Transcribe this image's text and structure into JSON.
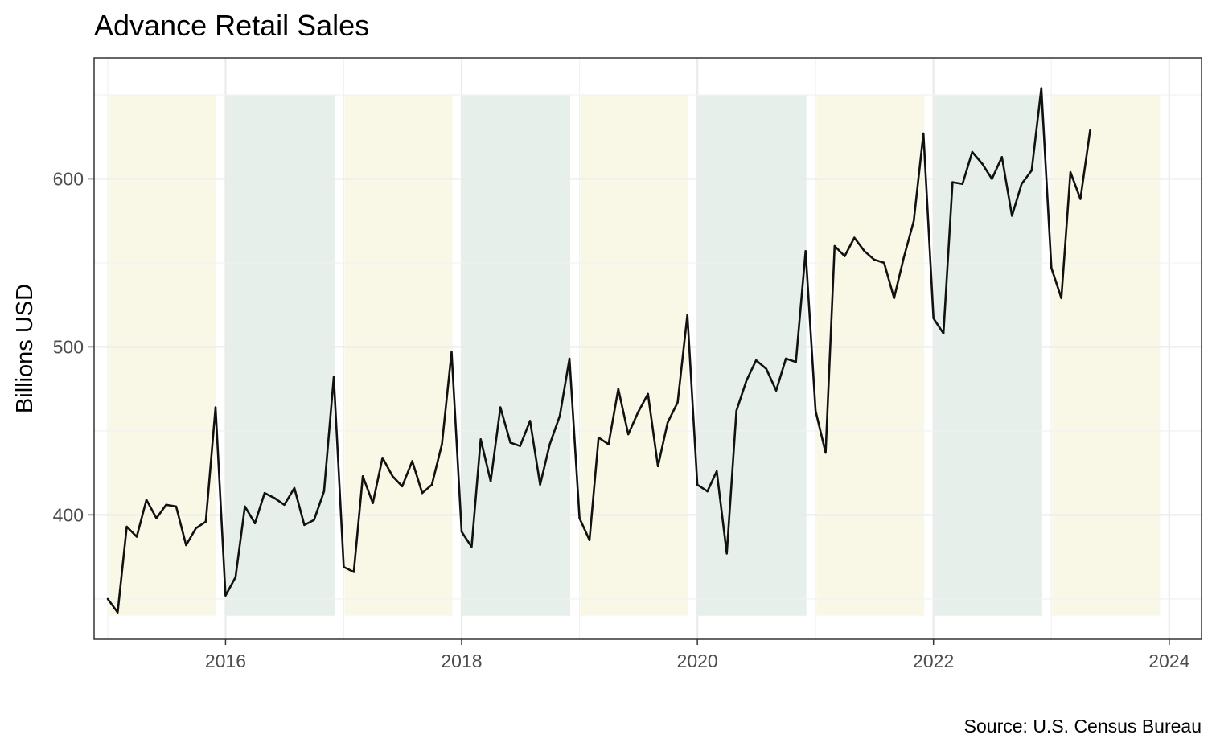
{
  "chart_data": {
    "type": "line",
    "title": "Advance Retail Sales",
    "xlabel": "",
    "ylabel": "Billions USD",
    "caption": "Source: U.S. Census Bureau",
    "xlim": [
      "2014-11-20",
      "2024-04-10"
    ],
    "ylim": [
      326,
      672
    ],
    "x_ticks": [
      "2016",
      "2018",
      "2020",
      "2022",
      "2024"
    ],
    "y_ticks": [
      400,
      500,
      600
    ],
    "grid": true,
    "legend": "none",
    "colors": {
      "line": "#111111",
      "band_yellow": "#f8f7e4",
      "band_teal": "#e4ede8",
      "panel_border": "#333333",
      "tick_text": "#4d4d4d"
    },
    "year_bands": [
      {
        "year": "2015",
        "color": "yellow"
      },
      {
        "year": "2016",
        "color": "teal"
      },
      {
        "year": "2017",
        "color": "yellow"
      },
      {
        "year": "2018",
        "color": "teal"
      },
      {
        "year": "2019",
        "color": "yellow"
      },
      {
        "year": "2020",
        "color": "teal"
      },
      {
        "year": "2021",
        "color": "yellow"
      },
      {
        "year": "2022",
        "color": "teal"
      },
      {
        "year": "2023",
        "color": "yellow"
      }
    ],
    "band_range": [
      340,
      650
    ],
    "series": [
      {
        "x": [
          "2015-01",
          "2015-02",
          "2015-03",
          "2015-04",
          "2015-05",
          "2015-06",
          "2015-07",
          "2015-08",
          "2015-09",
          "2015-10",
          "2015-11",
          "2015-12",
          "2016-01",
          "2016-02",
          "2016-03",
          "2016-04",
          "2016-05",
          "2016-06",
          "2016-07",
          "2016-08",
          "2016-09",
          "2016-10",
          "2016-11",
          "2016-12",
          "2017-01",
          "2017-02",
          "2017-03",
          "2017-04",
          "2017-05",
          "2017-06",
          "2017-07",
          "2017-08",
          "2017-09",
          "2017-10",
          "2017-11",
          "2017-12",
          "2018-01",
          "2018-02",
          "2018-03",
          "2018-04",
          "2018-05",
          "2018-06",
          "2018-07",
          "2018-08",
          "2018-09",
          "2018-10",
          "2018-11",
          "2018-12",
          "2019-01",
          "2019-02",
          "2019-03",
          "2019-04",
          "2019-05",
          "2019-06",
          "2019-07",
          "2019-08",
          "2019-09",
          "2019-10",
          "2019-11",
          "2019-12",
          "2020-01",
          "2020-02",
          "2020-03",
          "2020-04",
          "2020-05",
          "2020-06",
          "2020-07",
          "2020-08",
          "2020-09",
          "2020-10",
          "2020-11",
          "2020-12",
          "2021-01",
          "2021-02",
          "2021-03",
          "2021-04",
          "2021-05",
          "2021-06",
          "2021-07",
          "2021-08",
          "2021-09",
          "2021-10",
          "2021-11",
          "2021-12",
          "2022-01",
          "2022-02",
          "2022-03",
          "2022-04",
          "2022-05",
          "2022-06",
          "2022-07",
          "2022-08",
          "2022-09",
          "2022-10",
          "2022-11",
          "2022-12",
          "2023-01",
          "2023-02",
          "2023-03",
          "2023-04",
          "2023-05"
        ],
        "values": [
          350,
          342,
          393,
          387,
          409,
          398,
          406,
          405,
          382,
          392,
          396,
          464,
          352,
          363,
          405,
          395,
          413,
          410,
          406,
          416,
          394,
          397,
          414,
          482,
          369,
          366,
          423,
          407,
          434,
          423,
          417,
          432,
          413,
          418,
          442,
          497,
          390,
          381,
          445,
          420,
          464,
          443,
          441,
          456,
          418,
          442,
          459,
          493,
          398,
          385,
          446,
          442,
          475,
          448,
          461,
          472,
          429,
          455,
          467,
          519,
          418,
          414,
          426,
          377,
          462,
          480,
          492,
          487,
          474,
          493,
          491,
          557,
          462,
          437,
          560,
          554,
          565,
          557,
          552,
          550,
          529,
          553,
          575,
          627,
          517,
          508,
          598,
          597,
          616,
          609,
          600,
          613,
          578,
          597,
          605,
          654,
          547,
          529,
          604,
          588,
          629
        ]
      }
    ]
  }
}
